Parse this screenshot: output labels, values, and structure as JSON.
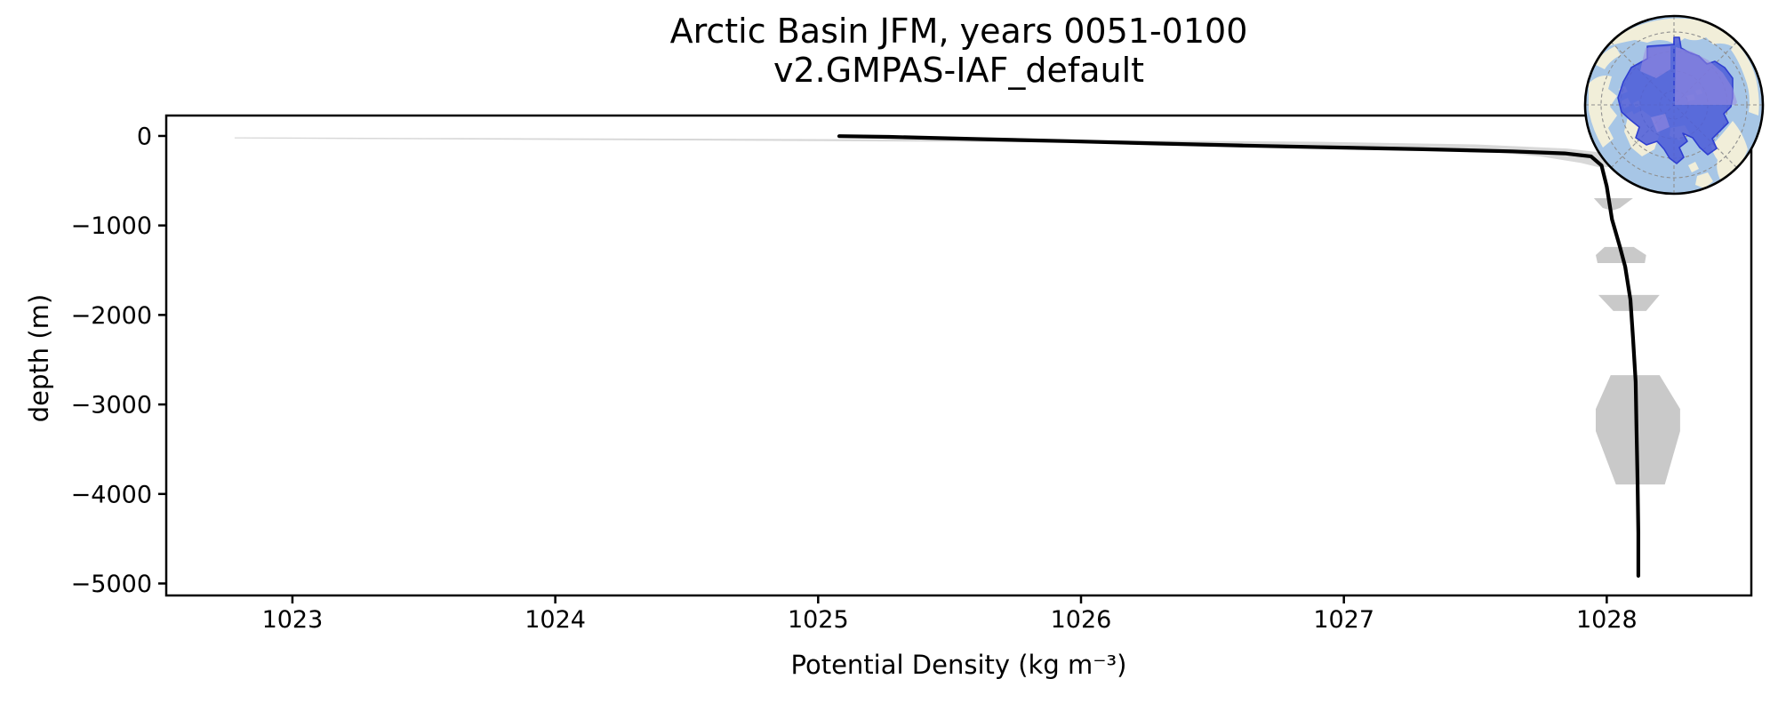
{
  "figure": {
    "title_line1": "Arctic Basin JFM, years 0051-0100",
    "title_line2": "v2.GMPAS-IAF_default"
  },
  "chart_data": {
    "type": "line",
    "title": "Arctic Basin JFM, years 0051-0100",
    "subtitle": "v2.GMPAS-IAF_default",
    "xlabel": "Potential Density (kg m⁻³)",
    "ylabel": "depth (m)",
    "xlim": [
      1022.52,
      1028.55
    ],
    "ylim": [
      -5134,
      228
    ],
    "grid": false,
    "legend": "none",
    "xticks": [
      {
        "v": 1023,
        "label": "1023"
      },
      {
        "v": 1024,
        "label": "1024"
      },
      {
        "v": 1025,
        "label": "1025"
      },
      {
        "v": 1026,
        "label": "1026"
      },
      {
        "v": 1027,
        "label": "1027"
      },
      {
        "v": 1028,
        "label": "1028"
      }
    ],
    "yticks": [
      {
        "v": 0,
        "label": "0"
      },
      {
        "v": -1000,
        "label": "−1000"
      },
      {
        "v": -2000,
        "label": "−2000"
      },
      {
        "v": -3000,
        "label": "−3000"
      },
      {
        "v": -4000,
        "label": "−4000"
      },
      {
        "v": -5000,
        "label": "−5000"
      }
    ],
    "series": [
      {
        "name": "mean potential density profile",
        "color": "#000000",
        "width": 4.2,
        "points": [
          [
            1025.08,
            -2
          ],
          [
            1025.27,
            -10
          ],
          [
            1025.61,
            -35
          ],
          [
            1025.95,
            -58
          ],
          [
            1026.28,
            -84
          ],
          [
            1026.62,
            -108
          ],
          [
            1026.96,
            -128
          ],
          [
            1027.3,
            -148
          ],
          [
            1027.64,
            -172
          ],
          [
            1027.84,
            -195
          ],
          [
            1027.94,
            -228
          ],
          [
            1027.98,
            -330
          ],
          [
            1028.0,
            -565
          ],
          [
            1028.02,
            -933
          ],
          [
            1028.05,
            -1240
          ],
          [
            1028.07,
            -1460
          ],
          [
            1028.09,
            -1830
          ],
          [
            1028.1,
            -2255
          ],
          [
            1028.11,
            -2750
          ],
          [
            1028.113,
            -3250
          ],
          [
            1028.117,
            -3840
          ],
          [
            1028.12,
            -4440
          ],
          [
            1028.12,
            -4915
          ]
        ]
      }
    ],
    "envelope_polygons": [
      {
        "name": "surface-spread-band",
        "color": "#d8d8d8",
        "points": [
          [
            1022.78,
            -15
          ],
          [
            1023.5,
            -22
          ],
          [
            1024.5,
            -30
          ],
          [
            1025.5,
            -40
          ],
          [
            1026.3,
            -52
          ],
          [
            1026.9,
            -65
          ],
          [
            1027.5,
            -95
          ],
          [
            1027.85,
            -140
          ],
          [
            1028.02,
            -200
          ],
          [
            1028.09,
            -280
          ],
          [
            1028.05,
            -345
          ],
          [
            1027.97,
            -350
          ],
          [
            1027.9,
            -300
          ],
          [
            1027.75,
            -230
          ],
          [
            1027.45,
            -150
          ],
          [
            1026.9,
            -100
          ],
          [
            1026.3,
            -80
          ],
          [
            1025.5,
            -65
          ],
          [
            1024.5,
            -50
          ],
          [
            1023.5,
            -38
          ],
          [
            1022.78,
            -28
          ]
        ]
      },
      {
        "name": "spread-blob-700m",
        "color": "#c9c9c9",
        "points": [
          [
            1027.951,
            -695
          ],
          [
            1028.1,
            -695
          ],
          [
            1028.05,
            -805
          ],
          [
            1028.02,
            -834
          ],
          [
            1027.985,
            -805
          ]
        ]
      },
      {
        "name": "spread-blob-1300m",
        "color": "#c9c9c9",
        "points": [
          [
            1027.992,
            -1241
          ],
          [
            1028.103,
            -1241
          ],
          [
            1028.15,
            -1331
          ],
          [
            1028.145,
            -1420
          ],
          [
            1027.965,
            -1420
          ],
          [
            1027.958,
            -1331
          ]
        ]
      },
      {
        "name": "spread-blob-1850m",
        "color": "#c9c9c9",
        "points": [
          [
            1027.968,
            -1777
          ],
          [
            1028.201,
            -1777
          ],
          [
            1028.15,
            -1956
          ],
          [
            1028.025,
            -1956
          ]
        ]
      },
      {
        "name": "spread-blob-3200m",
        "color": "#c9c9c9",
        "points": [
          [
            1028.015,
            -2672
          ],
          [
            1028.201,
            -2672
          ],
          [
            1028.279,
            -3050
          ],
          [
            1028.279,
            -3298
          ],
          [
            1028.221,
            -3894
          ],
          [
            1028.035,
            -3894
          ],
          [
            1027.958,
            -3298
          ],
          [
            1027.958,
            -3050
          ]
        ]
      }
    ]
  },
  "inset_map": {
    "name": "Arctic Basin region locator globe",
    "colors": {
      "ocean": "#a7c6e6",
      "land": "#f1eed9",
      "region_fill": "#4e5ed8",
      "region_edge": "#2f3fd0",
      "overlay_fill": "#9a8ce0",
      "graticule": "#8f8f8f",
      "border": "#000000"
    }
  }
}
